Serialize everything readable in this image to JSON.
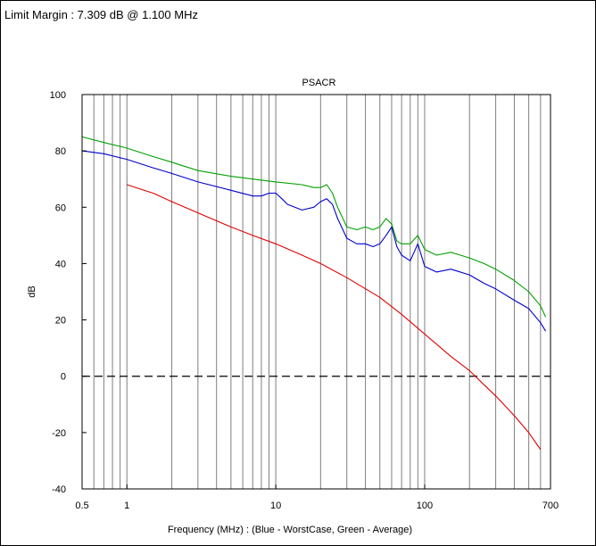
{
  "header": {
    "limit_margin_text": "Limit Margin : 7.309 dB @ 1.100 MHz"
  },
  "chart_data": {
    "type": "line",
    "title": "PSACR",
    "xlabel": "Frequency (MHz) : (Blue - WorstCase, Green - Average)",
    "ylabel": "dB",
    "x_scale": "log",
    "xlim": [
      0.5,
      700
    ],
    "ylim": [
      -40,
      100
    ],
    "x_ticks": [
      0.5,
      1,
      10,
      100,
      700
    ],
    "x_tick_labels": [
      "0.5",
      "1",
      "10",
      "100",
      "700"
    ],
    "y_ticks": [
      -40,
      -20,
      0,
      20,
      40,
      60,
      80,
      100
    ],
    "y_tick_labels": [
      "-40",
      "-20",
      "0",
      "20",
      "40",
      "60",
      "80",
      "100"
    ],
    "grid": "vertical-log",
    "reference_line": {
      "y": 0,
      "style": "dashed",
      "color": "#000000"
    },
    "series": [
      {
        "color": "#00a000",
        "x": [
          0.5,
          0.7,
          1,
          1.5,
          2,
          3,
          5,
          7,
          10,
          15,
          18,
          20,
          22,
          24,
          26,
          30,
          35,
          40,
          45,
          50,
          55,
          60,
          65,
          70,
          80,
          90,
          100,
          120,
          150,
          200,
          250,
          300,
          400,
          500,
          600,
          650
        ],
        "y": [
          85,
          83,
          81,
          78,
          76,
          73,
          71,
          70,
          69,
          68,
          67,
          67,
          68,
          65,
          60,
          53,
          52,
          53,
          52,
          53,
          56,
          54,
          48,
          47,
          47,
          50,
          45,
          43,
          44,
          42,
          40,
          38,
          34,
          30,
          25,
          21
        ]
      },
      {
        "color": "#0000cc",
        "x": [
          0.5,
          0.7,
          1,
          1.5,
          2,
          3,
          5,
          7,
          8,
          9,
          10,
          11,
          12,
          15,
          18,
          20,
          22,
          24,
          26,
          30,
          35,
          40,
          45,
          50,
          55,
          60,
          65,
          70,
          80,
          90,
          100,
          120,
          150,
          200,
          250,
          300,
          400,
          500,
          600,
          650
        ],
        "y": [
          80,
          79,
          77,
          74,
          72,
          69,
          66,
          64,
          64,
          65,
          65,
          63,
          61,
          59,
          60,
          62,
          63,
          61,
          56,
          49,
          47,
          47,
          46,
          47,
          50,
          53,
          46,
          43,
          41,
          47,
          39,
          37,
          38,
          36,
          33,
          31,
          27,
          24,
          19,
          16
        ]
      },
      {
        "color": "#e00000",
        "x": [
          1,
          1.5,
          2,
          3,
          5,
          7,
          10,
          15,
          20,
          30,
          50,
          70,
          100,
          150,
          200,
          250,
          300,
          400,
          500,
          600
        ],
        "y": [
          68,
          65,
          62,
          58,
          53,
          50,
          47,
          43,
          40,
          35,
          28,
          22,
          15,
          7,
          2,
          -3,
          -7,
          -14,
          -20,
          -26
        ]
      }
    ]
  }
}
